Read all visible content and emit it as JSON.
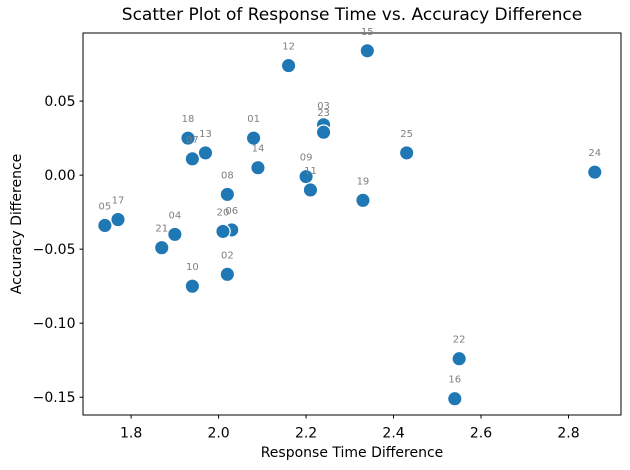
{
  "chart_data": {
    "type": "scatter",
    "title": "Scatter Plot of Response Time vs. Accuracy Difference",
    "xlabel": "Response Time Difference",
    "ylabel": "Accuracy Difference",
    "xlim": [
      1.69,
      2.92
    ],
    "ylim": [
      -0.162,
      0.096
    ],
    "x_ticks": [
      1.8,
      2.0,
      2.2,
      2.4,
      2.6,
      2.8
    ],
    "x_tick_labels": [
      "1.8",
      "2.0",
      "2.2",
      "2.4",
      "2.6",
      "2.8"
    ],
    "y_ticks": [
      0.05,
      0.0,
      -0.05,
      -0.1,
      -0.15
    ],
    "y_tick_labels": [
      "0.05",
      "0.00",
      "−0.05",
      "−0.10",
      "−0.15"
    ],
    "grid": false,
    "legend": null,
    "marker_color": "#1f77b4",
    "marker_edge_color": "#ffffff",
    "annotation_color": "#7f7f7f",
    "points": [
      {
        "label": "01",
        "x": 2.08,
        "y": 0.025
      },
      {
        "label": "02",
        "x": 2.02,
        "y": -0.067
      },
      {
        "label": "03",
        "x": 2.24,
        "y": 0.034
      },
      {
        "label": "04",
        "x": 1.9,
        "y": -0.04
      },
      {
        "label": "05",
        "x": 1.74,
        "y": -0.034
      },
      {
        "label": "06",
        "x": 2.03,
        "y": -0.037
      },
      {
        "label": "07",
        "x": 1.94,
        "y": 0.011
      },
      {
        "label": "08",
        "x": 2.02,
        "y": -0.013
      },
      {
        "label": "09",
        "x": 2.2,
        "y": -0.001
      },
      {
        "label": "10",
        "x": 1.94,
        "y": -0.075
      },
      {
        "label": "11",
        "x": 2.21,
        "y": -0.01
      },
      {
        "label": "12",
        "x": 2.16,
        "y": 0.074
      },
      {
        "label": "13",
        "x": 1.97,
        "y": 0.015
      },
      {
        "label": "14",
        "x": 2.09,
        "y": 0.005
      },
      {
        "label": "15",
        "x": 2.34,
        "y": 0.084
      },
      {
        "label": "16",
        "x": 2.54,
        "y": -0.151
      },
      {
        "label": "17",
        "x": 1.77,
        "y": -0.03
      },
      {
        "label": "18",
        "x": 1.93,
        "y": 0.025
      },
      {
        "label": "19",
        "x": 2.33,
        "y": -0.017
      },
      {
        "label": "20",
        "x": 2.01,
        "y": -0.038
      },
      {
        "label": "21",
        "x": 1.87,
        "y": -0.049
      },
      {
        "label": "22",
        "x": 2.55,
        "y": -0.124
      },
      {
        "label": "23",
        "x": 2.24,
        "y": 0.029
      },
      {
        "label": "24",
        "x": 2.86,
        "y": 0.002
      },
      {
        "label": "25",
        "x": 2.43,
        "y": 0.015
      }
    ]
  }
}
